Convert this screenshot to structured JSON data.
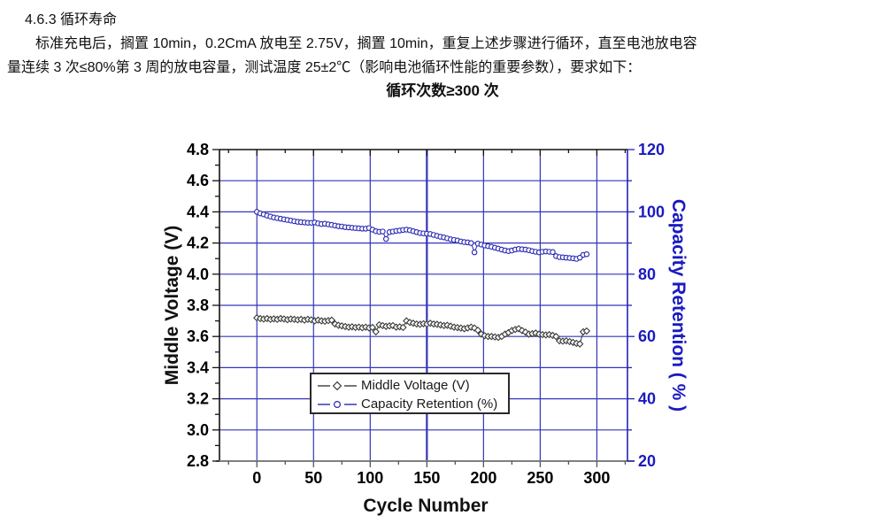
{
  "document": {
    "heading": "4.6.3 循环寿命",
    "para_line1": "标准充电后，搁置 10min，0.2CmA 放电至 2.75V，搁置 10min，重复上述步骤进行循环，直至电池放电容",
    "para_line2": "量连续 3 次≤80%第 3 周的放电容量，测试温度 25±2℃（影响电池循环性能的重要参数），要求如下：",
    "requirement": "循环次数≥300 次"
  },
  "chart_data": {
    "type": "line",
    "xlabel": "Cycle Number",
    "ylabel_left": "Middle Voltage (V)",
    "ylabel_right": "Capacity Retention ( % )",
    "xlim": [
      -33,
      327
    ],
    "ylim_left": [
      2.8,
      4.8
    ],
    "ylim_right": [
      20,
      120
    ],
    "grid": true,
    "x_tick_values": [
      0,
      50,
      100,
      150,
      200,
      250,
      300
    ],
    "x_tick_labels": [
      "0",
      "50",
      "100",
      "150",
      "200",
      "250",
      "300"
    ],
    "x_minor_step": 25,
    "left_tick_values": [
      4.8,
      4.6,
      4.4,
      4.2,
      4.0,
      3.8,
      3.6,
      3.4,
      3.2,
      3.0,
      2.8
    ],
    "left_tick_labels": [
      "4.8",
      "4.6",
      "4.4",
      "4.2",
      "4.0",
      "3.8",
      "3.6",
      "3.4",
      "3.2",
      "3.0",
      "2.8"
    ],
    "right_tick_values": [
      120,
      100,
      80,
      60,
      40,
      20
    ],
    "right_tick_labels": [
      "120",
      "100",
      "80",
      "60",
      "40",
      "20"
    ],
    "colors": {
      "grid": "#3434bb",
      "axis_left": "#111111",
      "axis_top": "#111111",
      "axis_bottom": "#808080",
      "axis_right": "#2222bb",
      "right_label_text": "#1a1ac0",
      "voltage_series": "#3a3a3a",
      "capacity_series": "#2828b4"
    },
    "legend": {
      "position": "bottom-center",
      "entries": [
        {
          "label": "Middle Voltage (V)",
          "marker": "diamond"
        },
        {
          "label": "Capacity Retention (%)",
          "marker": "circle"
        }
      ]
    },
    "series": [
      {
        "name": "Middle Voltage (V)",
        "axis": "left",
        "marker": "diamond",
        "points": [
          [
            0,
            3.72
          ],
          [
            3,
            3.715
          ],
          [
            6,
            3.712
          ],
          [
            9,
            3.715
          ],
          [
            12,
            3.71
          ],
          [
            15,
            3.713
          ],
          [
            18,
            3.71
          ],
          [
            21,
            3.715
          ],
          [
            24,
            3.712
          ],
          [
            27,
            3.708
          ],
          [
            30,
            3.712
          ],
          [
            33,
            3.71
          ],
          [
            36,
            3.707
          ],
          [
            39,
            3.71
          ],
          [
            42,
            3.705
          ],
          [
            45,
            3.71
          ],
          [
            48,
            3.707
          ],
          [
            51,
            3.7
          ],
          [
            54,
            3.705
          ],
          [
            57,
            3.7
          ],
          [
            60,
            3.698
          ],
          [
            63,
            3.702
          ],
          [
            66,
            3.705
          ],
          [
            69,
            3.68
          ],
          [
            72,
            3.672
          ],
          [
            75,
            3.668
          ],
          [
            78,
            3.664
          ],
          [
            81,
            3.66
          ],
          [
            84,
            3.662
          ],
          [
            87,
            3.658
          ],
          [
            90,
            3.66
          ],
          [
            93,
            3.656
          ],
          [
            96,
            3.66
          ],
          [
            99,
            3.655
          ],
          [
            102,
            3.658
          ],
          [
            105,
            3.63
          ],
          [
            108,
            3.675
          ],
          [
            111,
            3.67
          ],
          [
            114,
            3.665
          ],
          [
            117,
            3.668
          ],
          [
            120,
            3.67
          ],
          [
            123,
            3.66
          ],
          [
            126,
            3.662
          ],
          [
            129,
            3.658
          ],
          [
            132,
            3.7
          ],
          [
            135,
            3.69
          ],
          [
            138,
            3.685
          ],
          [
            141,
            3.68
          ],
          [
            144,
            3.678
          ],
          [
            147,
            3.682
          ],
          [
            150,
            3.68
          ],
          [
            153,
            3.685
          ],
          [
            156,
            3.68
          ],
          [
            159,
            3.678
          ],
          [
            162,
            3.674
          ],
          [
            165,
            3.67
          ],
          [
            168,
            3.672
          ],
          [
            171,
            3.666
          ],
          [
            174,
            3.66
          ],
          [
            177,
            3.657
          ],
          [
            180,
            3.654
          ],
          [
            183,
            3.65
          ],
          [
            186,
            3.655
          ],
          [
            189,
            3.66
          ],
          [
            192,
            3.654
          ],
          [
            195,
            3.64
          ],
          [
            198,
            3.615
          ],
          [
            201,
            3.605
          ],
          [
            204,
            3.6
          ],
          [
            207,
            3.6
          ],
          [
            210,
            3.597
          ],
          [
            213,
            3.594
          ],
          [
            216,
            3.6
          ],
          [
            219,
            3.615
          ],
          [
            222,
            3.625
          ],
          [
            225,
            3.638
          ],
          [
            228,
            3.645
          ],
          [
            231,
            3.65
          ],
          [
            234,
            3.638
          ],
          [
            237,
            3.628
          ],
          [
            240,
            3.615
          ],
          [
            243,
            3.618
          ],
          [
            246,
            3.622
          ],
          [
            249,
            3.615
          ],
          [
            252,
            3.612
          ],
          [
            255,
            3.61
          ],
          [
            258,
            3.612
          ],
          [
            261,
            3.607
          ],
          [
            264,
            3.6
          ],
          [
            267,
            3.572
          ],
          [
            270,
            3.57
          ],
          [
            273,
            3.572
          ],
          [
            276,
            3.567
          ],
          [
            279,
            3.562
          ],
          [
            282,
            3.556
          ],
          [
            285,
            3.552
          ],
          [
            288,
            3.63
          ],
          [
            291,
            3.635
          ]
        ]
      },
      {
        "name": "Capacity Retention (%)",
        "axis": "right",
        "marker": "circle",
        "points": [
          [
            0,
            100.0
          ],
          [
            3,
            99.5
          ],
          [
            6,
            99.2
          ],
          [
            9,
            98.8
          ],
          [
            12,
            98.5
          ],
          [
            15,
            98.2
          ],
          [
            18,
            98.0
          ],
          [
            21,
            97.8
          ],
          [
            24,
            97.6
          ],
          [
            27,
            97.4
          ],
          [
            30,
            97.2
          ],
          [
            33,
            97.0
          ],
          [
            36,
            96.8
          ],
          [
            39,
            96.7
          ],
          [
            42,
            96.6
          ],
          [
            45,
            96.5
          ],
          [
            48,
            96.5
          ],
          [
            51,
            96.6
          ],
          [
            54,
            96.3
          ],
          [
            57,
            96.1
          ],
          [
            60,
            96.2
          ],
          [
            63,
            96.0
          ],
          [
            66,
            95.8
          ],
          [
            69,
            95.6
          ],
          [
            72,
            95.4
          ],
          [
            75,
            95.3
          ],
          [
            78,
            95.1
          ],
          [
            81,
            95.0
          ],
          [
            84,
            94.9
          ],
          [
            87,
            94.8
          ],
          [
            90,
            94.7
          ],
          [
            93,
            94.6
          ],
          [
            96,
            94.6
          ],
          [
            99,
            94.8
          ],
          [
            102,
            94.3
          ],
          [
            105,
            93.8
          ],
          [
            108,
            93.6
          ],
          [
            111,
            93.7
          ],
          [
            114,
            91.3
          ],
          [
            117,
            93.5
          ],
          [
            120,
            93.7
          ],
          [
            123,
            93.9
          ],
          [
            126,
            94.0
          ],
          [
            129,
            94.2
          ],
          [
            132,
            94.3
          ],
          [
            135,
            94.1
          ],
          [
            138,
            93.8
          ],
          [
            141,
            93.5
          ],
          [
            144,
            93.2
          ],
          [
            147,
            93.1
          ],
          [
            150,
            93.0
          ],
          [
            153,
            92.9
          ],
          [
            156,
            92.6
          ],
          [
            159,
            92.3
          ],
          [
            162,
            92.0
          ],
          [
            165,
            91.8
          ],
          [
            168,
            91.5
          ],
          [
            171,
            91.2
          ],
          [
            174,
            91.0
          ],
          [
            177,
            90.8
          ],
          [
            180,
            90.5
          ],
          [
            183,
            90.3
          ],
          [
            186,
            90.2
          ],
          [
            189,
            90.0
          ],
          [
            192,
            87.0
          ],
          [
            195,
            89.8
          ],
          [
            198,
            89.5
          ],
          [
            201,
            89.2
          ],
          [
            204,
            89.0
          ],
          [
            207,
            88.8
          ],
          [
            210,
            88.5
          ],
          [
            213,
            88.2
          ],
          [
            216,
            87.9
          ],
          [
            219,
            87.6
          ],
          [
            222,
            87.4
          ],
          [
            225,
            87.6
          ],
          [
            228,
            87.9
          ],
          [
            231,
            88.1
          ],
          [
            234,
            88.0
          ],
          [
            237,
            87.9
          ],
          [
            240,
            87.7
          ],
          [
            243,
            87.4
          ],
          [
            246,
            87.2
          ],
          [
            249,
            87.0
          ],
          [
            252,
            87.2
          ],
          [
            255,
            87.3
          ],
          [
            258,
            87.2
          ],
          [
            261,
            87.1
          ],
          [
            264,
            85.8
          ],
          [
            267,
            85.5
          ],
          [
            270,
            85.4
          ],
          [
            273,
            85.3
          ],
          [
            276,
            85.2
          ],
          [
            279,
            85.1
          ],
          [
            282,
            84.9
          ],
          [
            285,
            85.3
          ],
          [
            288,
            86.2
          ],
          [
            291,
            86.4
          ]
        ]
      }
    ]
  }
}
